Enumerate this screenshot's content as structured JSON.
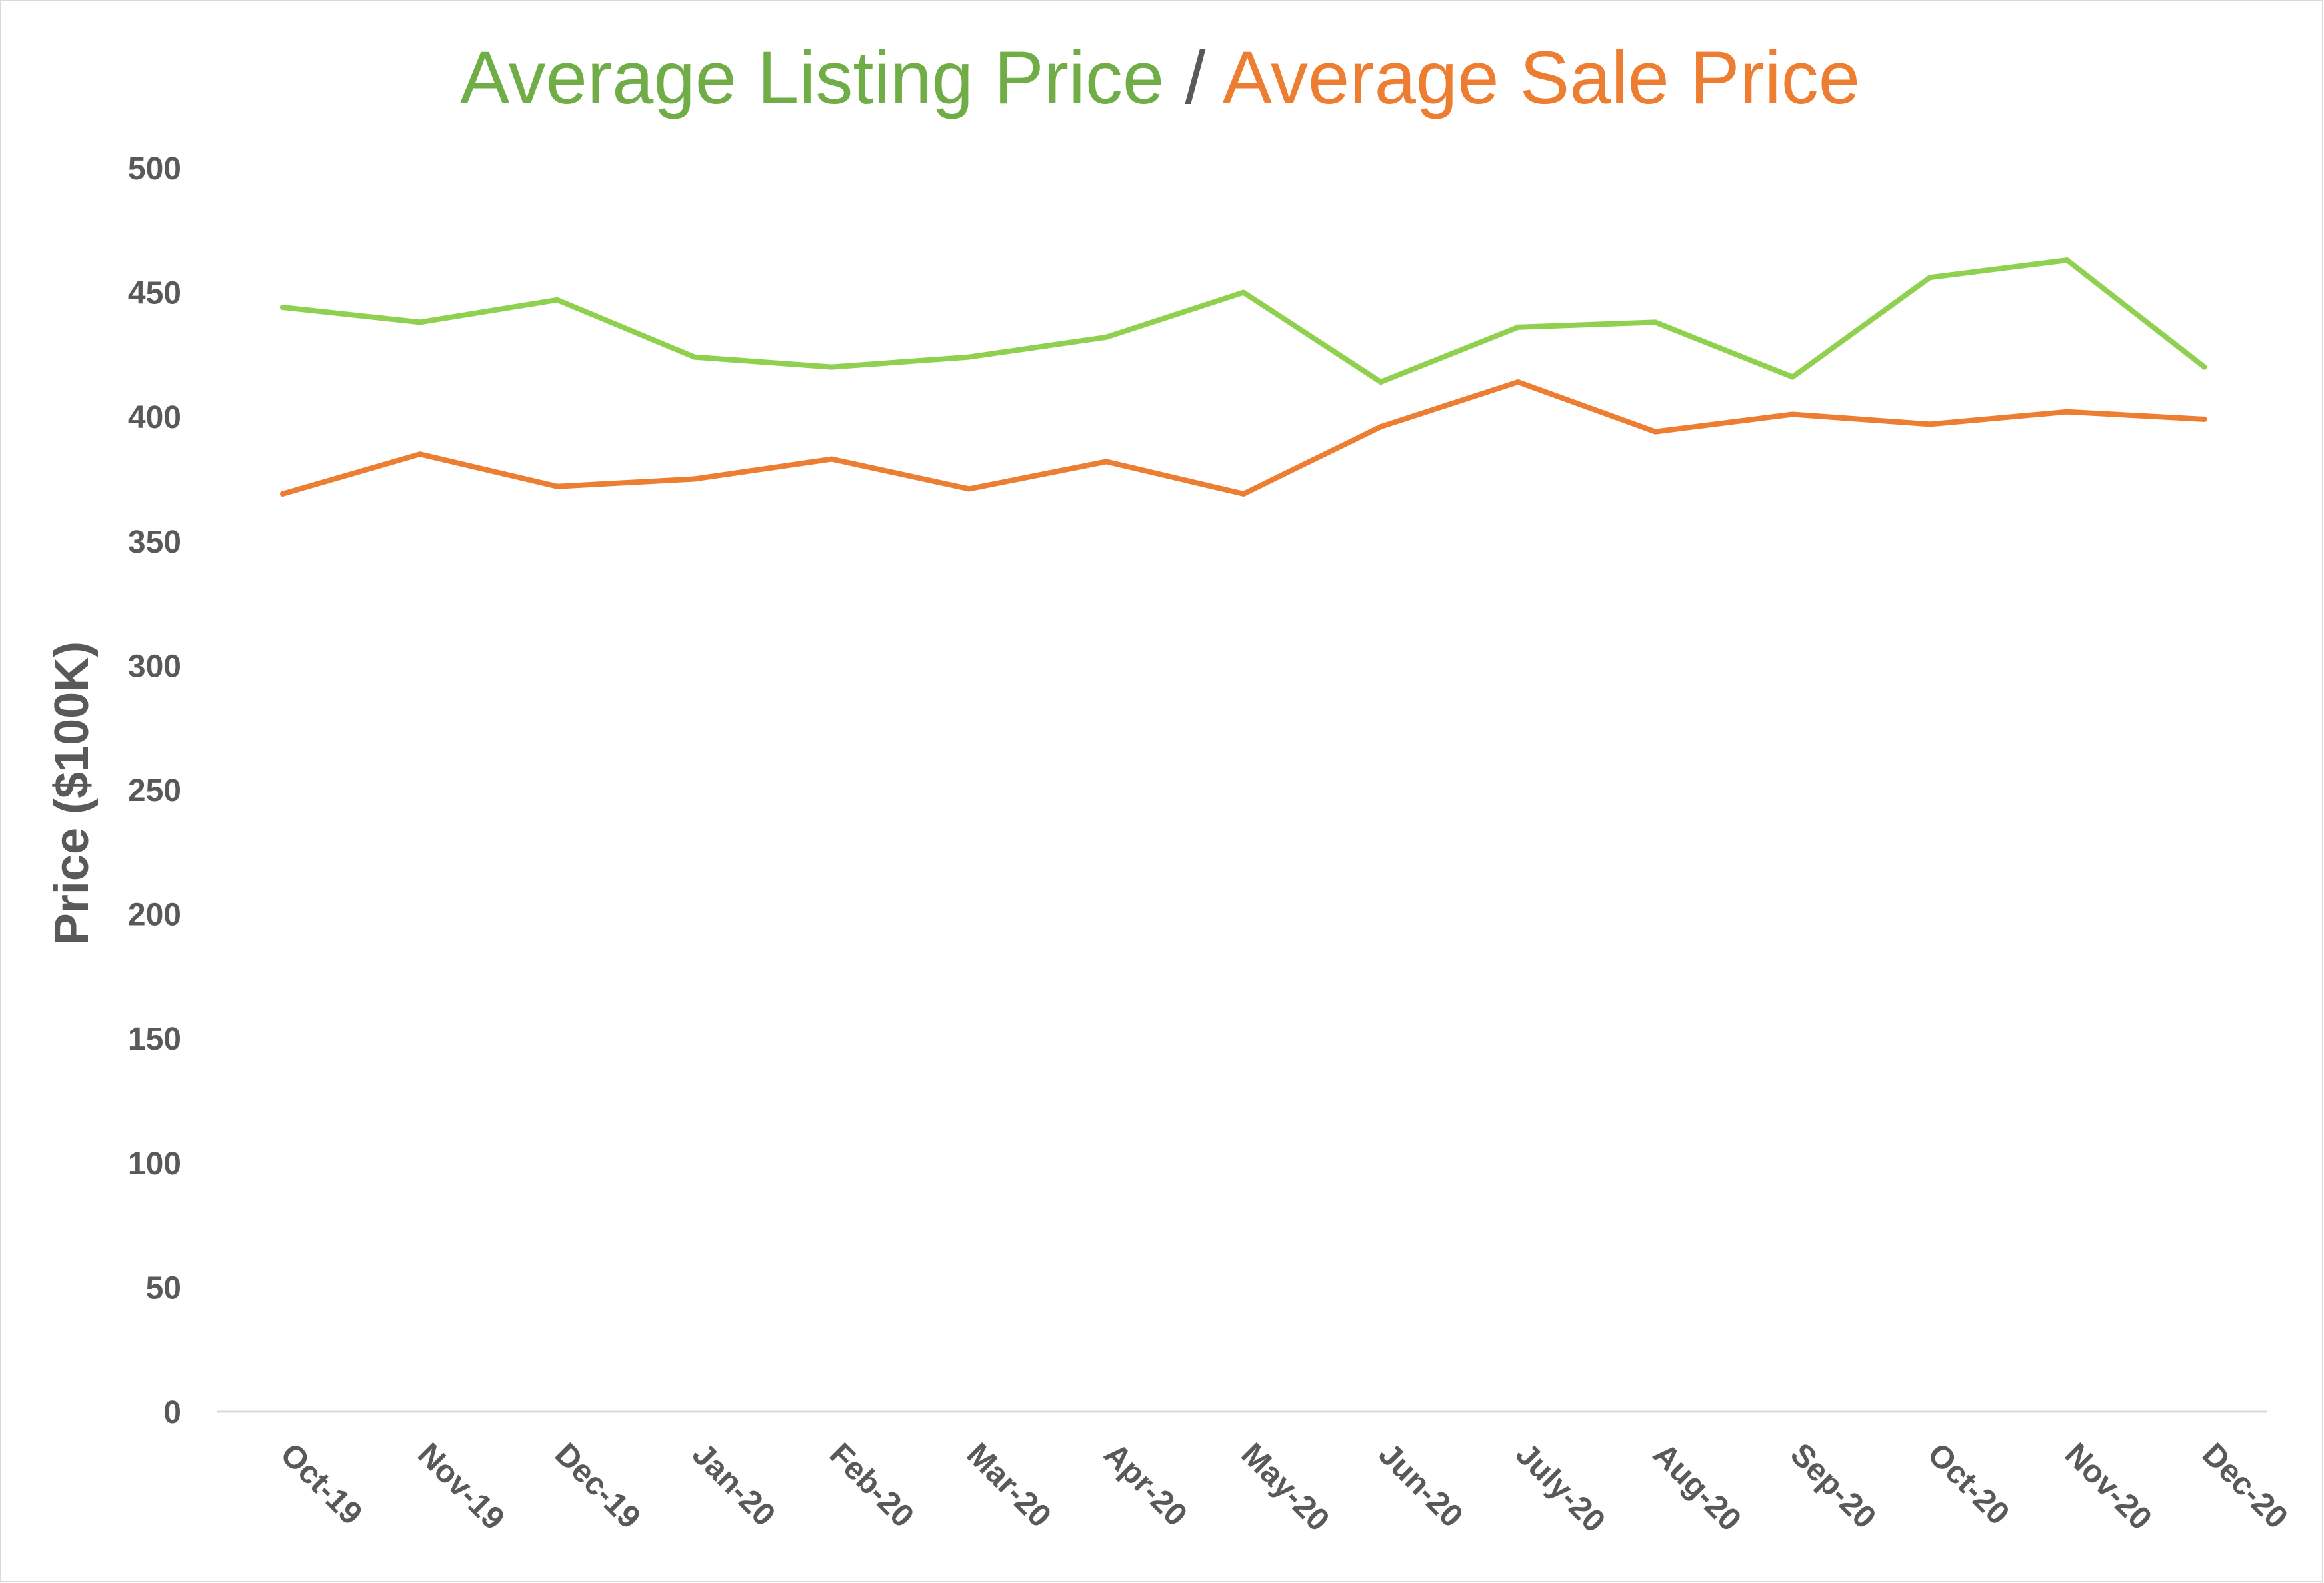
{
  "chart_data": {
    "type": "line",
    "title_parts": [
      {
        "text": "Average Listing Price",
        "color": "#70ad47"
      },
      {
        "text": " / ",
        "color": "#595959"
      },
      {
        "text": "Average Sale Price",
        "color": "#ed7d31"
      }
    ],
    "xlabel": "",
    "ylabel": "Price ($100K)",
    "ylim": [
      0,
      500
    ],
    "yticks": [
      "0",
      "50",
      "100",
      "150",
      "200",
      "250",
      "300",
      "350",
      "400",
      "450",
      "500"
    ],
    "categories": [
      "Oct-19",
      "Nov-19",
      "Dec-19",
      "Jan-20",
      "Feb-20",
      "Mar-20",
      "Apr-20",
      "May-20",
      "Jun-20",
      "July-20",
      "Aug-20",
      "Sep-20",
      "Oct-20",
      "Nov-20",
      "Dec-20"
    ],
    "grid": false,
    "legend": "none",
    "series": [
      {
        "color": "#8fd14f",
        "values": [
          444,
          438,
          447,
          424,
          420,
          424,
          432,
          450,
          414,
          436,
          438,
          416,
          456,
          463,
          420
        ]
      },
      {
        "color": "#ed7d31",
        "values": [
          369,
          385,
          372,
          375,
          383,
          371,
          382,
          369,
          396,
          414,
          394,
          401,
          397,
          402,
          399
        ]
      }
    ]
  }
}
